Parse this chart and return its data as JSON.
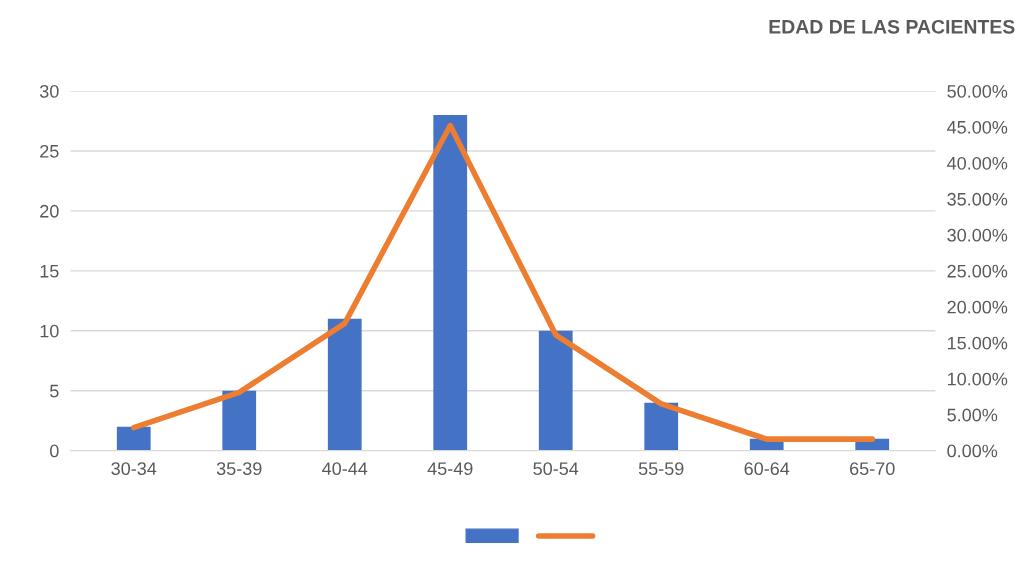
{
  "chart_data": {
    "type": "bar",
    "title": "EDAD DE LAS PACIENTES",
    "categories": [
      "30-34",
      "35-39",
      "40-44",
      "45-49",
      "50-54",
      "55-59",
      "60-64",
      "65-70"
    ],
    "series": [
      {
        "color": "#4472c4",
        "values": [
          2,
          5,
          11,
          28,
          10,
          4,
          1,
          1
        ]
      },
      {
        "type": "line",
        "axis": "y2",
        "color": "#ed7d31",
        "values": [
          3.2,
          8.1,
          17.7,
          45.2,
          16.1,
          6.5,
          1.6,
          1.6
        ]
      }
    ],
    "ylim": [
      0,
      30
    ],
    "yticks": [
      0,
      5,
      10,
      15,
      20,
      25,
      30
    ],
    "y2lim": [
      0,
      50
    ],
    "y2ticks": [
      {
        "value": 0,
        "label": "0.00%"
      },
      {
        "value": 5,
        "label": "5.00%"
      },
      {
        "value": 10,
        "label": "10.00%"
      },
      {
        "value": 15,
        "label": "15.00%"
      },
      {
        "value": 20,
        "label": "20.00%"
      },
      {
        "value": 25,
        "label": "25.00%"
      },
      {
        "value": 30,
        "label": "30.00%"
      },
      {
        "value": 35,
        "label": "35.00%"
      },
      {
        "value": 40,
        "label": "40.00%"
      },
      {
        "value": 45,
        "label": "45.00%"
      },
      {
        "value": 50,
        "label": "50.00%"
      }
    ],
    "grid": "y",
    "marker": "none"
  }
}
